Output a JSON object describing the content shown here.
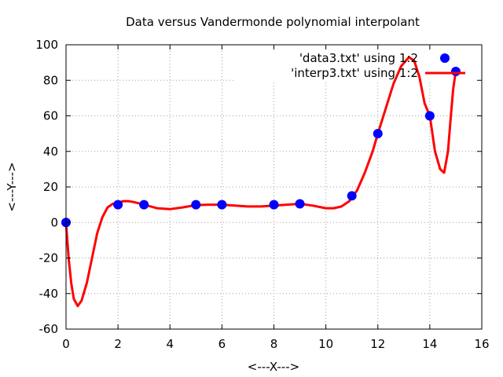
{
  "chart_data": {
    "type": "line",
    "title": "Data versus Vandermonde polynomial interpolant",
    "xlabel": "<---X--->",
    "ylabel": "<---Y--->",
    "xlim": [
      0,
      16
    ],
    "ylim": [
      -60,
      100
    ],
    "xticks": [
      0,
      2,
      4,
      6,
      8,
      10,
      12,
      14,
      16
    ],
    "yticks": [
      -60,
      -40,
      -20,
      0,
      20,
      40,
      60,
      80,
      100
    ],
    "grid": true,
    "legend_position": "top-right",
    "series": [
      {
        "name": "'data3.txt' using 1:2",
        "style": "points",
        "color": "#0000ff",
        "x": [
          0,
          2,
          3,
          5,
          6,
          8,
          9,
          11,
          12,
          14,
          15
        ],
        "y": [
          0,
          10,
          10,
          10,
          10,
          10,
          10.5,
          15,
          50,
          60,
          85
        ]
      },
      {
        "name": "'interp3.txt' using 1:2",
        "style": "line",
        "color": "#ff0000",
        "x": [
          0,
          0.1,
          0.2,
          0.3,
          0.45,
          0.6,
          0.8,
          1.0,
          1.2,
          1.4,
          1.6,
          1.8,
          2.0,
          2.2,
          2.4,
          2.6,
          3.0,
          3.5,
          4.0,
          4.5,
          5.0,
          5.5,
          6.0,
          6.5,
          7.0,
          7.5,
          8.0,
          8.5,
          9.0,
          9.5,
          10.0,
          10.3,
          10.6,
          10.9,
          11.2,
          11.5,
          11.8,
          12.0,
          12.3,
          12.6,
          12.9,
          13.2,
          13.4,
          13.6,
          13.8,
          14.0,
          14.2,
          14.4,
          14.55,
          14.7,
          14.8,
          14.9,
          15.0
        ],
        "y": [
          0,
          -20,
          -34,
          -43,
          -47,
          -44,
          -34,
          -20,
          -6,
          3,
          8.5,
          10.5,
          11,
          12,
          12,
          11.5,
          10,
          8,
          7.5,
          8.5,
          9.8,
          10,
          10,
          9.5,
          9,
          9,
          9.5,
          10,
          10.5,
          9.5,
          8,
          8,
          9,
          12,
          18,
          28,
          40,
          50,
          64,
          78,
          88,
          93,
          91,
          82,
          67,
          60,
          40,
          30,
          28,
          40,
          58,
          75,
          85
        ]
      }
    ]
  }
}
